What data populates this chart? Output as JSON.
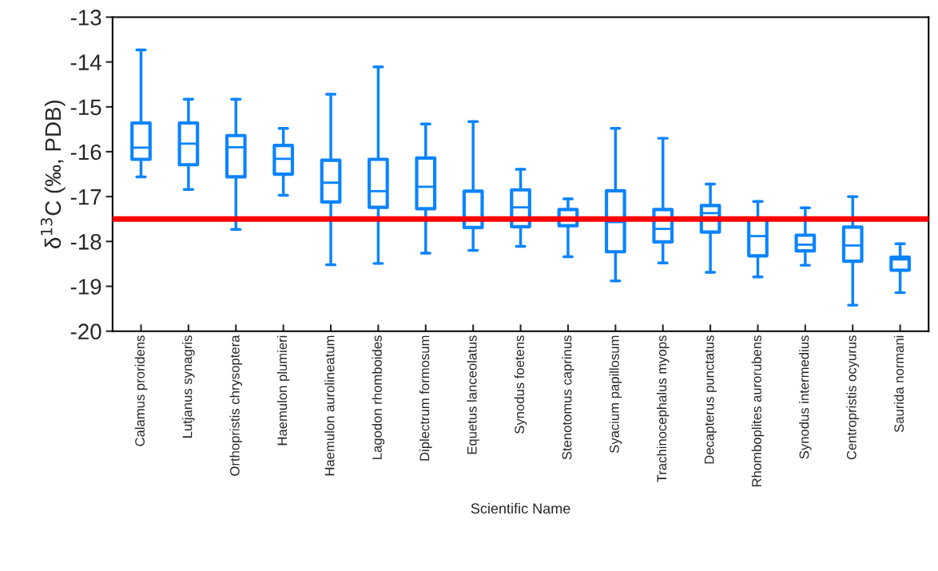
{
  "chart_data": {
    "type": "box",
    "xlabel": "Scientific Name",
    "ylabel": "δ$^{13}$C (‰, PDB)",
    "categories": [
      "Calamus proridens",
      "Lutjanus synagris",
      "Orthopristis chrysoptera",
      "Haemulon plumieri",
      "Haemulon aurolineatum",
      "Lagodon rhomboides",
      "Diplectrum formosum",
      "Equetus lanceolatus",
      "Synodus foetens",
      "Stenotomus caprinus",
      "Syacium papillosum",
      "Trachinocephalus myops",
      "Decapterus punctatus",
      "Rhomboplites aurorubens",
      "Synodus intermedius",
      "Centropristis ocyurus",
      "Saurida normani"
    ],
    "color": "#0a84ff",
    "boxes": [
      {
        "low": -16.56,
        "q1": -16.17,
        "median": -15.91,
        "q3": -15.36,
        "high": -13.73
      },
      {
        "low": -16.84,
        "q1": -16.29,
        "median": -15.82,
        "q3": -15.36,
        "high": -14.83
      },
      {
        "low": -17.73,
        "q1": -16.56,
        "median": -15.9,
        "q3": -15.64,
        "high": -14.83
      },
      {
        "low": -16.97,
        "q1": -16.5,
        "median": -16.16,
        "q3": -15.86,
        "high": -15.48
      },
      {
        "low": -18.52,
        "q1": -17.12,
        "median": -16.69,
        "q3": -16.19,
        "high": -14.72
      },
      {
        "low": -18.49,
        "q1": -17.24,
        "median": -16.88,
        "q3": -16.17,
        "high": -14.11
      },
      {
        "low": -18.26,
        "q1": -17.27,
        "median": -16.78,
        "q3": -16.14,
        "high": -15.38
      },
      {
        "low": -18.2,
        "q1": -17.69,
        "median": -17.5,
        "q3": -16.88,
        "high": -15.33
      },
      {
        "low": -18.11,
        "q1": -17.67,
        "median": -17.24,
        "q3": -16.85,
        "high": -16.39
      },
      {
        "low": -18.34,
        "q1": -17.65,
        "median": -17.47,
        "q3": -17.29,
        "high": -17.05
      },
      {
        "low": -18.88,
        "q1": -18.23,
        "median": -17.57,
        "q3": -16.87,
        "high": -15.48
      },
      {
        "low": -18.48,
        "q1": -18.01,
        "median": -17.72,
        "q3": -17.29,
        "high": -15.7
      },
      {
        "low": -18.69,
        "q1": -17.79,
        "median": -17.37,
        "q3": -17.2,
        "high": -16.72
      },
      {
        "low": -18.79,
        "q1": -18.32,
        "median": -17.88,
        "q3": -17.5,
        "high": -17.11
      },
      {
        "low": -18.53,
        "q1": -18.21,
        "median": -18.07,
        "q3": -17.86,
        "high": -17.25
      },
      {
        "low": -19.42,
        "q1": -18.44,
        "median": -18.09,
        "q3": -17.68,
        "high": -17.0
      },
      {
        "low": -19.14,
        "q1": -18.64,
        "median": -18.4,
        "q3": -18.35,
        "high": -18.05
      }
    ],
    "ylim": [
      -20,
      -13
    ],
    "yticks": [
      -20,
      -19,
      -18,
      -17,
      -16,
      -15,
      -14,
      -13
    ],
    "ref_lines": [
      {
        "axis": "y",
        "value": -17.5,
        "color": "#ff0000"
      }
    ],
    "grid": false,
    "legend": false
  }
}
